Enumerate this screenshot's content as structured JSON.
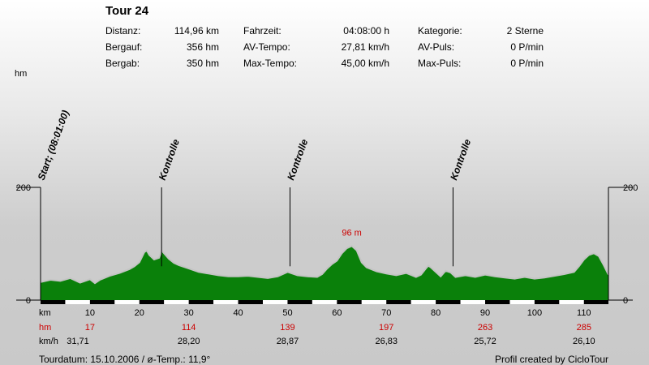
{
  "header": {
    "title": "Tour 24",
    "stats": [
      {
        "label": "Distanz:",
        "value": "114,96 km"
      },
      {
        "label": "Bergauf:",
        "value": "356 hm"
      },
      {
        "label": "Bergab:",
        "value": "350 hm"
      },
      {
        "label": "Fahrzeit:",
        "value": "04:08:00 h"
      },
      {
        "label": "AV-Tempo:",
        "value": "27,81 km/h"
      },
      {
        "label": "Max-Tempo:",
        "value": "45,00 km/h"
      },
      {
        "label": "Kategorie:",
        "value": "2 Sterne"
      },
      {
        "label": "AV-Puls:",
        "value": "0 P/min"
      },
      {
        "label": "Max-Puls:",
        "value": "0 P/min"
      }
    ]
  },
  "footer": {
    "left": "Tourdatum: 15.10.2006  /  ø-Temp.: 11,9°",
    "right": "Profil created by CicloTour"
  },
  "colors": {
    "fill": "#0a800a",
    "outline": "#c4c4c4",
    "label_red": "#cc0000"
  },
  "chart_data": {
    "type": "area",
    "xlim": [
      0,
      114.96
    ],
    "ylim": [
      0,
      200
    ],
    "y_unit_label": "hm",
    "y_ticks": [
      0,
      200
    ],
    "x_row_label": "km",
    "x_ticks": [
      10,
      20,
      30,
      40,
      50,
      60,
      70,
      80,
      90,
      100,
      110
    ],
    "elevation": {
      "x": [
        0,
        2,
        4,
        6,
        8,
        10,
        11,
        12,
        14,
        16,
        18,
        19,
        20,
        21,
        21.5,
        22,
        23,
        24,
        24.5,
        25,
        26,
        27,
        28,
        30,
        32,
        34,
        36,
        38,
        40,
        42,
        44,
        46,
        48,
        50,
        52,
        54,
        56,
        57,
        58,
        59,
        60,
        61,
        62,
        63,
        64,
        65,
        66,
        68,
        70,
        72,
        74,
        76,
        77,
        78,
        78.5,
        79,
        80,
        81,
        82,
        83,
        84,
        86,
        88,
        90,
        92,
        94,
        96,
        98,
        100,
        102,
        104,
        106,
        108,
        109,
        110,
        111,
        112,
        113,
        114,
        114.96
      ],
      "y": [
        32,
        36,
        34,
        39,
        31,
        37,
        30,
        36,
        43,
        48,
        55,
        60,
        67,
        85,
        88,
        80,
        72,
        75,
        88,
        83,
        73,
        66,
        62,
        56,
        50,
        47,
        44,
        42,
        42,
        43,
        41,
        39,
        42,
        50,
        44,
        42,
        41,
        46,
        56,
        64,
        70,
        83,
        92,
        96,
        88,
        67,
        58,
        51,
        47,
        44,
        48,
        41,
        45,
        56,
        61,
        58,
        50,
        42,
        52,
        49,
        41,
        44,
        41,
        45,
        42,
        40,
        38,
        41,
        38,
        40,
        43,
        46,
        50,
        60,
        72,
        80,
        83,
        78,
        62,
        45
      ]
    },
    "markers": [
      {
        "x": 0,
        "label": "Start; (08:01:00)",
        "top": 228
      },
      {
        "x": 24.5,
        "label": "Kontrolle",
        "top": 188
      },
      {
        "x": 50.5,
        "label": "Kontrolle",
        "top": 190
      },
      {
        "x": 83.5,
        "label": "Kontrolle",
        "top": 190
      }
    ],
    "peak_annotation": {
      "x": 63,
      "y": 96,
      "label": "96 m"
    },
    "hm_row": {
      "label": "hm",
      "values": [
        {
          "x": 10,
          "text": "17"
        },
        {
          "x": 30,
          "text": "114"
        },
        {
          "x": 50,
          "text": "139"
        },
        {
          "x": 70,
          "text": "197"
        },
        {
          "x": 90,
          "text": "263"
        },
        {
          "x": 110,
          "text": "285"
        }
      ]
    },
    "speed_row": {
      "label": "km/h",
      "values": [
        {
          "x": 0,
          "text": "31,71"
        },
        {
          "x": 30,
          "text": "28,20"
        },
        {
          "x": 50,
          "text": "28,87"
        },
        {
          "x": 70,
          "text": "26,83"
        },
        {
          "x": 90,
          "text": "25,72"
        },
        {
          "x": 110,
          "text": "26,10"
        }
      ]
    }
  }
}
